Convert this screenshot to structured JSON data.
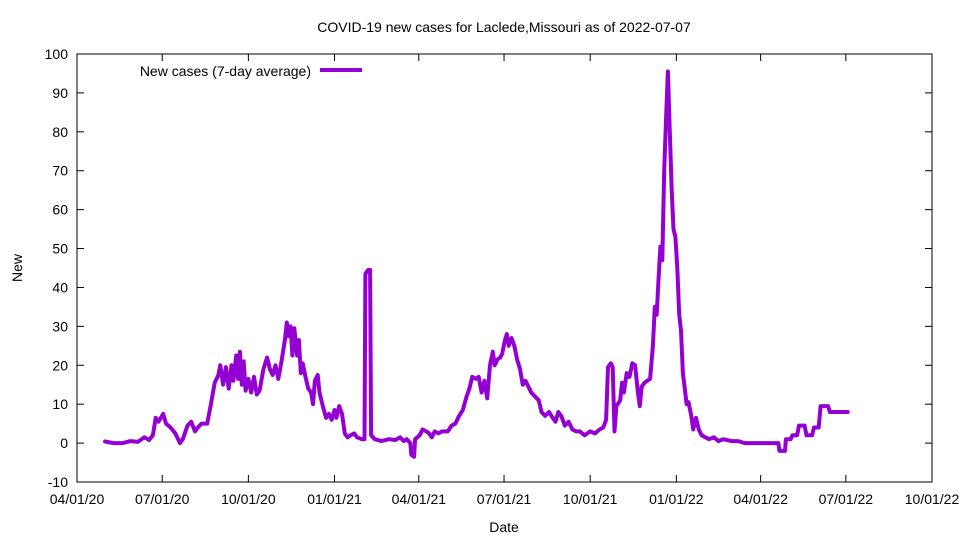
{
  "chart_data": {
    "type": "line",
    "title": "COVID-19 new cases for Laclede,Missouri as of 2022-07-07",
    "xlabel": "Date",
    "ylabel": "New",
    "ylim": [
      -10,
      100
    ],
    "yticks": [
      -10,
      0,
      10,
      20,
      30,
      40,
      50,
      60,
      70,
      80,
      90,
      100
    ],
    "xlim": [
      "2020-04-01",
      "2022-10-01"
    ],
    "xticks": [
      {
        "date": "2020-04-01",
        "label": "04/01/20"
      },
      {
        "date": "2020-07-01",
        "label": "07/01/20"
      },
      {
        "date": "2020-10-01",
        "label": "10/01/20"
      },
      {
        "date": "2021-01-01",
        "label": "01/01/21"
      },
      {
        "date": "2021-04-01",
        "label": "04/01/21"
      },
      {
        "date": "2021-07-01",
        "label": "07/01/21"
      },
      {
        "date": "2021-10-01",
        "label": "10/01/21"
      },
      {
        "date": "2022-01-01",
        "label": "01/01/22"
      },
      {
        "date": "2022-04-01",
        "label": "04/01/22"
      },
      {
        "date": "2022-07-01",
        "label": "07/01/22"
      },
      {
        "date": "2022-10-01",
        "label": "10/01/22"
      }
    ],
    "grid": false,
    "legend_position": "top-left",
    "series": [
      {
        "name": "New cases (7-day average)",
        "color": "#9400d3",
        "points": [
          [
            "2020-05-01",
            0.4
          ],
          [
            "2020-05-10",
            0.0
          ],
          [
            "2020-05-20",
            0.0
          ],
          [
            "2020-05-28",
            0.5
          ],
          [
            "2020-06-05",
            0.3
          ],
          [
            "2020-06-12",
            1.5
          ],
          [
            "2020-06-17",
            0.8
          ],
          [
            "2020-06-21",
            2.0
          ],
          [
            "2020-06-24",
            6.5
          ],
          [
            "2020-06-27",
            5.5
          ],
          [
            "2020-07-02",
            7.5
          ],
          [
            "2020-07-05",
            5.0
          ],
          [
            "2020-07-10",
            4.0
          ],
          [
            "2020-07-15",
            2.5
          ],
          [
            "2020-07-20",
            0.0
          ],
          [
            "2020-07-23",
            1.0
          ],
          [
            "2020-07-28",
            4.5
          ],
          [
            "2020-08-01",
            5.5
          ],
          [
            "2020-08-05",
            3.0
          ],
          [
            "2020-08-08",
            4.0
          ],
          [
            "2020-08-12",
            5.0
          ],
          [
            "2020-08-18",
            5.0
          ],
          [
            "2020-08-22",
            10.0
          ],
          [
            "2020-08-26",
            15.5
          ],
          [
            "2020-08-30",
            17.5
          ],
          [
            "2020-09-01",
            20.0
          ],
          [
            "2020-09-04",
            15.0
          ],
          [
            "2020-09-07",
            19.5
          ],
          [
            "2020-09-10",
            14.0
          ],
          [
            "2020-09-13",
            20.0
          ],
          [
            "2020-09-15",
            16.0
          ],
          [
            "2020-09-18",
            22.5
          ],
          [
            "2020-09-20",
            16.5
          ],
          [
            "2020-09-22",
            23.5
          ],
          [
            "2020-09-24",
            15.0
          ],
          [
            "2020-09-26",
            21.0
          ],
          [
            "2020-09-28",
            13.5
          ],
          [
            "2020-10-01",
            16.5
          ],
          [
            "2020-10-04",
            13.0
          ],
          [
            "2020-10-07",
            17.0
          ],
          [
            "2020-10-10",
            12.5
          ],
          [
            "2020-10-13",
            13.5
          ],
          [
            "2020-10-17",
            19.0
          ],
          [
            "2020-10-21",
            22.0
          ],
          [
            "2020-10-24",
            19.0
          ],
          [
            "2020-10-27",
            17.5
          ],
          [
            "2020-10-30",
            20.0
          ],
          [
            "2020-11-02",
            16.5
          ],
          [
            "2020-11-05",
            20.5
          ],
          [
            "2020-11-09",
            26.5
          ],
          [
            "2020-11-11",
            31.0
          ],
          [
            "2020-11-13",
            27.5
          ],
          [
            "2020-11-15",
            30.0
          ],
          [
            "2020-11-17",
            22.5
          ],
          [
            "2020-11-19",
            29.5
          ],
          [
            "2020-11-22",
            22.5
          ],
          [
            "2020-11-24",
            26.5
          ],
          [
            "2020-11-26",
            18.0
          ],
          [
            "2020-11-28",
            20.5
          ],
          [
            "2020-12-01",
            17.0
          ],
          [
            "2020-12-04",
            14.0
          ],
          [
            "2020-12-07",
            13.0
          ],
          [
            "2020-12-09",
            10.0
          ],
          [
            "2020-12-11",
            16.0
          ],
          [
            "2020-12-14",
            17.5
          ],
          [
            "2020-12-16",
            13.0
          ],
          [
            "2020-12-18",
            11.0
          ],
          [
            "2020-12-20",
            9.0
          ],
          [
            "2020-12-23",
            6.5
          ],
          [
            "2020-12-26",
            7.5
          ],
          [
            "2020-12-29",
            6.0
          ],
          [
            "2021-01-01",
            8.5
          ],
          [
            "2021-01-03",
            6.5
          ],
          [
            "2021-01-06",
            9.5
          ],
          [
            "2021-01-09",
            7.5
          ],
          [
            "2021-01-12",
            2.5
          ],
          [
            "2021-01-15",
            1.5
          ],
          [
            "2021-01-18",
            2.0
          ],
          [
            "2021-01-22",
            2.5
          ],
          [
            "2021-01-25",
            1.5
          ],
          [
            "2021-01-30",
            1.0
          ],
          [
            "2021-02-02",
            1.0
          ],
          [
            "2021-02-03",
            43.5
          ],
          [
            "2021-02-06",
            44.5
          ],
          [
            "2021-02-08",
            44.5
          ],
          [
            "2021-02-09",
            2.0
          ],
          [
            "2021-02-13",
            1.0
          ],
          [
            "2021-02-20",
            0.5
          ],
          [
            "2021-02-28",
            1.0
          ],
          [
            "2021-03-07",
            0.8
          ],
          [
            "2021-03-12",
            1.5
          ],
          [
            "2021-03-16",
            0.5
          ],
          [
            "2021-03-19",
            1.0
          ],
          [
            "2021-03-23",
            0.0
          ],
          [
            "2021-03-24",
            -3.0
          ],
          [
            "2021-03-27",
            -3.5
          ],
          [
            "2021-03-28",
            1.0
          ],
          [
            "2021-04-02",
            2.0
          ],
          [
            "2021-04-05",
            3.5
          ],
          [
            "2021-04-09",
            3.0
          ],
          [
            "2021-04-12",
            2.5
          ],
          [
            "2021-04-15",
            1.5
          ],
          [
            "2021-04-18",
            3.0
          ],
          [
            "2021-04-22",
            2.5
          ],
          [
            "2021-04-26",
            3.0
          ],
          [
            "2021-05-02",
            3.0
          ],
          [
            "2021-05-06",
            4.5
          ],
          [
            "2021-05-10",
            5.0
          ],
          [
            "2021-05-14",
            7.0
          ],
          [
            "2021-05-18",
            8.5
          ],
          [
            "2021-05-22",
            12.0
          ],
          [
            "2021-05-25",
            14.0
          ],
          [
            "2021-05-28",
            17.0
          ],
          [
            "2021-06-01",
            16.5
          ],
          [
            "2021-06-04",
            17.0
          ],
          [
            "2021-06-07",
            13.0
          ],
          [
            "2021-06-10",
            16.0
          ],
          [
            "2021-06-13",
            11.5
          ],
          [
            "2021-06-16",
            20.0
          ],
          [
            "2021-06-19",
            23.5
          ],
          [
            "2021-06-21",
            20.0
          ],
          [
            "2021-06-24",
            21.5
          ],
          [
            "2021-06-27",
            22.0
          ],
          [
            "2021-06-29",
            23.0
          ],
          [
            "2021-07-02",
            26.5
          ],
          [
            "2021-07-04",
            28.0
          ],
          [
            "2021-07-06",
            25.0
          ],
          [
            "2021-07-09",
            27.0
          ],
          [
            "2021-07-12",
            25.0
          ],
          [
            "2021-07-15",
            21.5
          ],
          [
            "2021-07-18",
            19.0
          ],
          [
            "2021-07-21",
            15.0
          ],
          [
            "2021-07-24",
            16.0
          ],
          [
            "2021-07-27",
            14.5
          ],
          [
            "2021-07-30",
            13.0
          ],
          [
            "2021-08-03",
            12.0
          ],
          [
            "2021-08-07",
            11.0
          ],
          [
            "2021-08-10",
            8.0
          ],
          [
            "2021-08-14",
            7.0
          ],
          [
            "2021-08-18",
            8.0
          ],
          [
            "2021-08-22",
            6.5
          ],
          [
            "2021-08-25",
            5.5
          ],
          [
            "2021-08-28",
            8.0
          ],
          [
            "2021-08-31",
            7.0
          ],
          [
            "2021-09-04",
            4.5
          ],
          [
            "2021-09-08",
            5.5
          ],
          [
            "2021-09-12",
            3.5
          ],
          [
            "2021-09-16",
            3.0
          ],
          [
            "2021-09-20",
            3.0
          ],
          [
            "2021-09-25",
            2.0
          ],
          [
            "2021-10-01",
            3.0
          ],
          [
            "2021-10-06",
            2.5
          ],
          [
            "2021-10-11",
            3.5
          ],
          [
            "2021-10-15",
            4.0
          ],
          [
            "2021-10-18",
            6.0
          ],
          [
            "2021-10-20",
            19.5
          ],
          [
            "2021-10-23",
            20.5
          ],
          [
            "2021-10-25",
            19.5
          ],
          [
            "2021-10-27",
            3.0
          ],
          [
            "2021-10-29",
            9.5
          ],
          [
            "2021-11-02",
            11.0
          ],
          [
            "2021-11-04",
            15.5
          ],
          [
            "2021-11-06",
            13.0
          ],
          [
            "2021-11-09",
            18.0
          ],
          [
            "2021-11-12",
            17.0
          ],
          [
            "2021-11-15",
            20.5
          ],
          [
            "2021-11-18",
            20.0
          ],
          [
            "2021-11-21",
            13.0
          ],
          [
            "2021-11-23",
            9.5
          ],
          [
            "2021-11-25",
            14.5
          ],
          [
            "2021-11-28",
            15.5
          ],
          [
            "2021-12-01",
            16.0
          ],
          [
            "2021-12-04",
            16.5
          ],
          [
            "2021-12-07",
            25.0
          ],
          [
            "2021-12-09",
            35.0
          ],
          [
            "2021-12-11",
            33.0
          ],
          [
            "2021-12-13",
            42.0
          ],
          [
            "2021-12-15",
            50.5
          ],
          [
            "2021-12-17",
            47.0
          ],
          [
            "2021-12-19",
            70.0
          ],
          [
            "2021-12-21",
            83.0
          ],
          [
            "2021-12-23",
            95.5
          ],
          [
            "2021-12-25",
            80.0
          ],
          [
            "2021-12-27",
            65.0
          ],
          [
            "2021-12-29",
            55.0
          ],
          [
            "2021-12-31",
            53.0
          ],
          [
            "2022-01-02",
            45.0
          ],
          [
            "2022-01-04",
            33.0
          ],
          [
            "2022-01-06",
            29.0
          ],
          [
            "2022-01-08",
            18.0
          ],
          [
            "2022-01-10",
            14.0
          ],
          [
            "2022-01-12",
            10.0
          ],
          [
            "2022-01-14",
            10.5
          ],
          [
            "2022-01-17",
            7.0
          ],
          [
            "2022-01-19",
            3.5
          ],
          [
            "2022-01-22",
            6.5
          ],
          [
            "2022-01-25",
            3.5
          ],
          [
            "2022-01-28",
            2.0
          ],
          [
            "2022-02-01",
            1.5
          ],
          [
            "2022-02-05",
            1.0
          ],
          [
            "2022-02-10",
            1.5
          ],
          [
            "2022-02-15",
            0.5
          ],
          [
            "2022-02-20",
            1.0
          ],
          [
            "2022-03-01",
            0.5
          ],
          [
            "2022-03-08",
            0.5
          ],
          [
            "2022-03-15",
            0.0
          ],
          [
            "2022-03-25",
            0.0
          ],
          [
            "2022-04-05",
            0.0
          ],
          [
            "2022-04-15",
            0.0
          ],
          [
            "2022-04-20",
            0.0
          ],
          [
            "2022-04-21",
            -2.0
          ],
          [
            "2022-04-27",
            -2.0
          ],
          [
            "2022-04-28",
            1.0
          ],
          [
            "2022-05-03",
            1.0
          ],
          [
            "2022-05-05",
            2.0
          ],
          [
            "2022-05-10",
            2.0
          ],
          [
            "2022-05-12",
            4.5
          ],
          [
            "2022-05-18",
            4.5
          ],
          [
            "2022-05-20",
            2.0
          ],
          [
            "2022-05-26",
            2.0
          ],
          [
            "2022-05-28",
            4.0
          ],
          [
            "2022-06-02",
            4.0
          ],
          [
            "2022-06-04",
            9.5
          ],
          [
            "2022-06-12",
            9.5
          ],
          [
            "2022-06-14",
            8.0
          ],
          [
            "2022-06-20",
            8.0
          ],
          [
            "2022-07-03",
            8.0
          ]
        ]
      }
    ]
  }
}
